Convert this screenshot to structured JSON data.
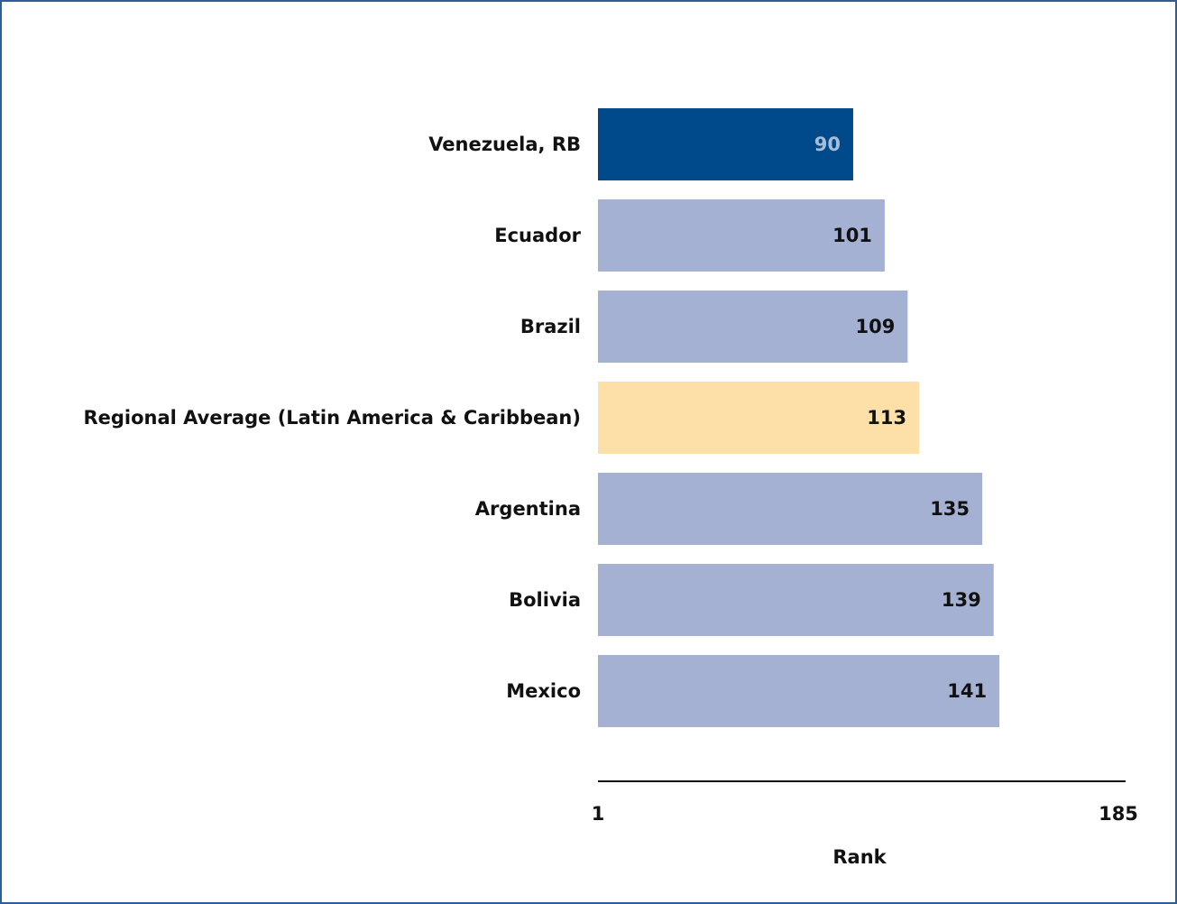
{
  "chart_data": {
    "type": "bar",
    "orientation": "horizontal",
    "categories": [
      "Venezuela, RB",
      "Ecuador",
      "Brazil",
      "Regional Average (Latin America & Caribbean)",
      "Argentina",
      "Bolivia",
      "Mexico"
    ],
    "values": [
      90,
      101,
      109,
      113,
      135,
      139,
      141
    ],
    "bar_colors": [
      "#004a8c",
      "#a5b1d3",
      "#a5b1d3",
      "#fde0a8",
      "#a5b1d3",
      "#a5b1d3",
      "#a5b1d3"
    ],
    "value_label_colors": [
      "#a9bcd6",
      "#111111",
      "#111111",
      "#111111",
      "#111111",
      "#111111",
      "#111111"
    ],
    "xlim": [
      1,
      185
    ],
    "xticks": [
      "1",
      "185"
    ],
    "xlabel": "Rank",
    "grid": false,
    "legend": "none"
  }
}
